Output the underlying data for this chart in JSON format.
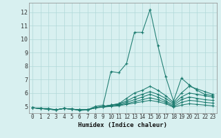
{
  "xlabel": "Humidex (Indice chaleur)",
  "bg_color": "#d8f0f0",
  "grid_color": "#b0d8d8",
  "line_color": "#1a7a6e",
  "xlim": [
    -0.5,
    23.5
  ],
  "ylim": [
    4.5,
    12.7
  ],
  "xticks": [
    0,
    1,
    2,
    3,
    4,
    5,
    6,
    7,
    8,
    9,
    10,
    11,
    12,
    13,
    14,
    15,
    16,
    17,
    18,
    19,
    20,
    21,
    22,
    23
  ],
  "yticks": [
    5,
    6,
    7,
    8,
    9,
    10,
    11,
    12
  ],
  "lines": [
    [
      4.9,
      4.85,
      4.85,
      4.75,
      4.85,
      4.8,
      4.7,
      4.75,
      5.0,
      5.1,
      7.6,
      7.5,
      8.2,
      10.5,
      10.5,
      12.2,
      9.5,
      7.2,
      5.4,
      7.1,
      6.6,
      6.2,
      5.9,
      5.8
    ],
    [
      4.9,
      4.85,
      4.8,
      4.75,
      4.85,
      4.8,
      4.75,
      4.75,
      4.9,
      5.0,
      5.1,
      5.2,
      5.6,
      6.0,
      6.2,
      6.5,
      6.2,
      5.8,
      5.3,
      6.0,
      6.5,
      6.3,
      6.1,
      5.9
    ],
    [
      4.9,
      4.85,
      4.8,
      4.75,
      4.85,
      4.8,
      4.75,
      4.75,
      4.9,
      5.0,
      5.1,
      5.2,
      5.4,
      5.7,
      5.9,
      6.1,
      5.9,
      5.6,
      5.2,
      5.7,
      6.0,
      5.9,
      5.8,
      5.7
    ],
    [
      4.9,
      4.85,
      4.8,
      4.75,
      4.85,
      4.8,
      4.75,
      4.75,
      4.9,
      5.0,
      5.1,
      5.15,
      5.3,
      5.5,
      5.7,
      5.9,
      5.7,
      5.4,
      5.1,
      5.5,
      5.7,
      5.6,
      5.5,
      5.45
    ],
    [
      4.9,
      4.85,
      4.8,
      4.75,
      4.85,
      4.8,
      4.75,
      4.75,
      4.9,
      4.95,
      5.05,
      5.1,
      5.2,
      5.35,
      5.5,
      5.65,
      5.5,
      5.3,
      5.0,
      5.3,
      5.45,
      5.4,
      5.3,
      5.25
    ],
    [
      4.9,
      4.85,
      4.8,
      4.75,
      4.85,
      4.8,
      4.75,
      4.75,
      4.9,
      4.95,
      5.0,
      5.05,
      5.15,
      5.25,
      5.35,
      5.45,
      5.35,
      5.2,
      4.95,
      5.1,
      5.2,
      5.15,
      5.1,
      5.05
    ]
  ]
}
